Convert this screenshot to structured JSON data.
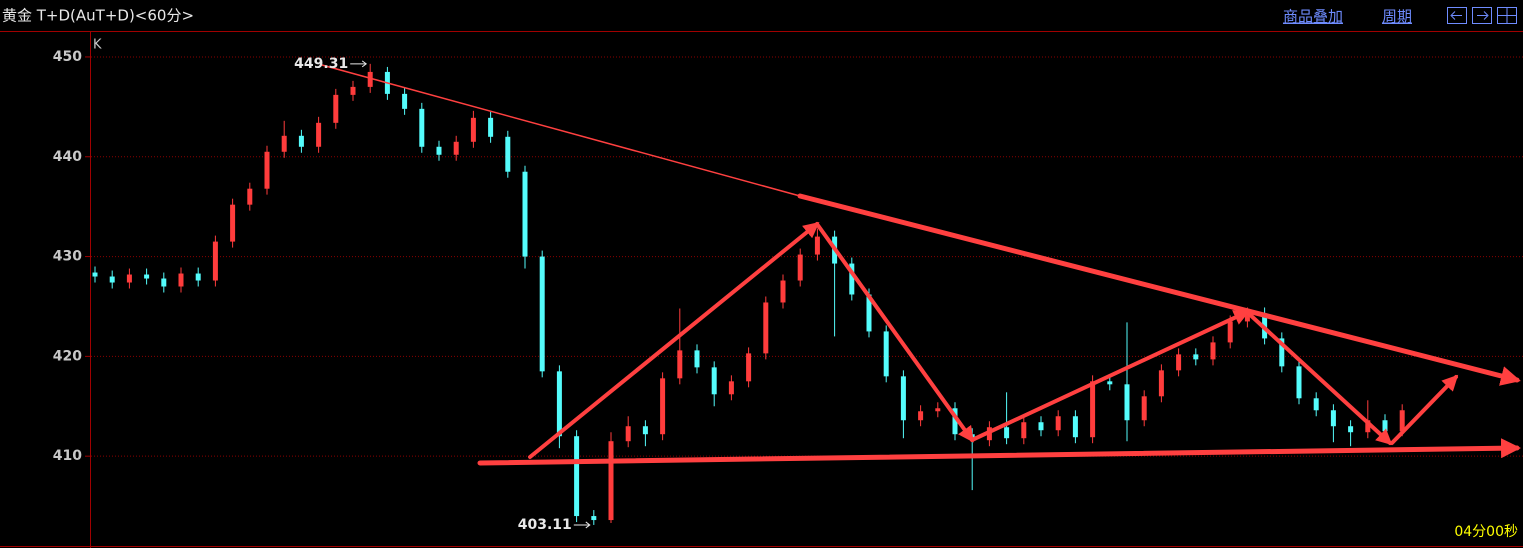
{
  "chart_data": {
    "type": "candlestick",
    "title": "黄金 T+D(AuT+D)<60分>",
    "menu": [
      "商品叠加",
      "周期"
    ],
    "indicator": "K",
    "timer": "04分00秒",
    "up_color": "#ff3c3c",
    "down_color": "#54fcfc",
    "grid": true,
    "ylim": [
      401,
      452.5
    ],
    "yticks": [
      410,
      420,
      430,
      440,
      450
    ],
    "open": [
      428.4,
      428.0,
      427.4,
      428.2,
      427.8,
      427.0,
      428.3,
      427.6,
      431.5,
      435.2,
      436.8,
      440.5,
      442.1,
      441.0,
      443.4,
      446.2,
      447.0,
      448.5,
      446.3,
      444.8,
      441.0,
      440.2,
      441.5,
      443.9,
      442.0,
      438.5,
      430.0,
      418.5,
      412.0,
      404.0,
      403.6,
      411.5,
      413.0,
      412.2,
      417.8,
      420.6,
      418.9,
      416.2,
      417.5,
      420.3,
      425.4,
      427.6,
      430.2,
      432.0,
      429.3,
      426.2,
      422.5,
      418.0,
      413.6,
      414.5,
      414.8,
      412.2,
      411.6,
      412.9,
      411.8,
      413.4,
      412.6,
      414.0,
      411.9,
      417.5,
      417.2,
      413.6,
      416.0,
      418.6,
      420.2,
      419.7,
      421.4,
      423.5,
      424.3,
      421.8,
      419.0,
      415.8,
      414.6,
      413.0,
      412.4,
      413.6,
      412.5
    ],
    "high": [
      429.0,
      428.6,
      428.8,
      428.8,
      428.4,
      428.9,
      428.9,
      432.1,
      435.8,
      437.4,
      441.1,
      443.6,
      442.7,
      444.0,
      446.8,
      447.6,
      449.31,
      449.0,
      446.9,
      445.4,
      441.6,
      442.1,
      444.6,
      444.5,
      442.6,
      439.1,
      430.6,
      419.1,
      412.6,
      404.6,
      412.4,
      414.0,
      413.6,
      418.4,
      424.8,
      421.2,
      419.5,
      418.1,
      420.9,
      426.0,
      428.2,
      430.8,
      432.8,
      432.6,
      429.9,
      426.8,
      423.1,
      418.6,
      415.1,
      415.4,
      415.4,
      412.8,
      413.5,
      416.4,
      414.0,
      414.0,
      414.6,
      414.6,
      418.1,
      418.1,
      423.4,
      416.6,
      419.2,
      420.8,
      420.8,
      422.0,
      424.1,
      424.9,
      424.9,
      422.4,
      419.6,
      416.4,
      415.2,
      413.6,
      415.6,
      414.2,
      415.2
    ],
    "low": [
      427.4,
      426.8,
      426.8,
      427.2,
      426.4,
      426.4,
      427.0,
      427.0,
      430.9,
      434.6,
      436.2,
      439.9,
      440.4,
      440.4,
      442.8,
      445.6,
      446.4,
      445.7,
      444.2,
      440.4,
      439.6,
      439.6,
      440.9,
      441.4,
      437.9,
      428.8,
      417.9,
      410.8,
      403.4,
      403.11,
      403.3,
      410.9,
      411.0,
      411.6,
      417.2,
      418.3,
      415.0,
      415.6,
      416.9,
      419.7,
      424.8,
      427.0,
      429.6,
      422.0,
      425.6,
      421.9,
      417.4,
      411.8,
      413.0,
      413.9,
      411.6,
      406.6,
      411.0,
      411.2,
      411.2,
      412.0,
      412.0,
      411.3,
      411.3,
      416.6,
      411.5,
      413.0,
      415.4,
      418.0,
      419.1,
      419.1,
      420.8,
      422.9,
      421.2,
      418.4,
      415.2,
      414.0,
      411.4,
      411.0,
      411.8,
      411.9,
      412.0
    ],
    "close": [
      428.0,
      427.4,
      428.2,
      427.8,
      427.0,
      428.3,
      427.6,
      431.5,
      435.2,
      436.8,
      440.5,
      442.1,
      441.0,
      443.4,
      446.2,
      447.0,
      448.5,
      446.3,
      444.8,
      441.0,
      440.2,
      441.5,
      443.9,
      442.0,
      438.5,
      430.0,
      418.5,
      412.0,
      404.0,
      403.6,
      411.5,
      413.0,
      412.2,
      417.8,
      420.6,
      418.9,
      416.2,
      417.5,
      420.3,
      425.4,
      427.6,
      430.2,
      432.0,
      429.3,
      426.2,
      422.5,
      418.0,
      413.6,
      414.5,
      414.8,
      412.2,
      411.6,
      412.9,
      411.8,
      413.4,
      412.6,
      414.0,
      411.9,
      417.5,
      417.2,
      413.6,
      416.0,
      418.6,
      420.2,
      419.7,
      421.4,
      423.5,
      424.3,
      421.8,
      419.0,
      415.8,
      414.6,
      413.0,
      412.4,
      413.6,
      412.5,
      414.6
    ]
  }
}
